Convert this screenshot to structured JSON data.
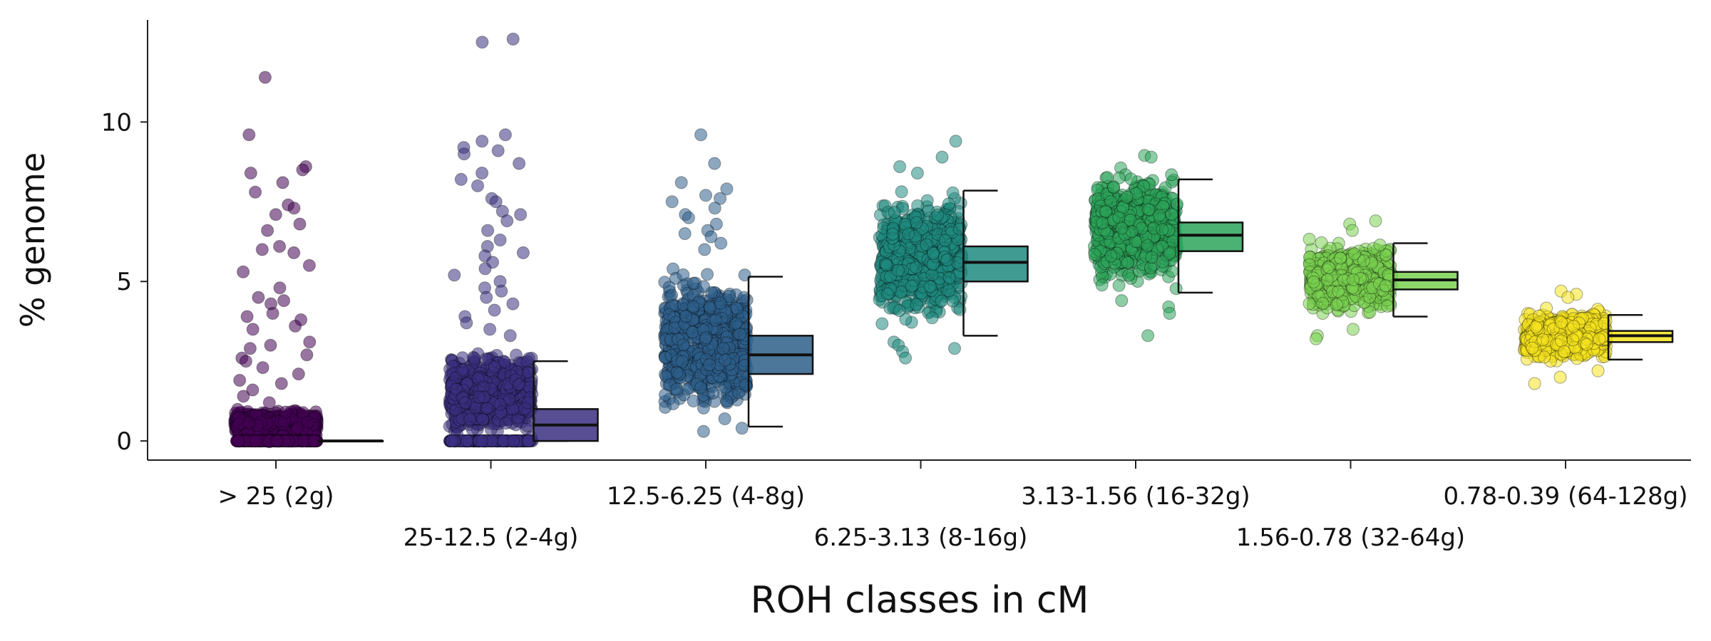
{
  "chart_data": {
    "type": "scatter",
    "title": "",
    "xlabel": "ROH classes in cM",
    "ylabel": "% genome",
    "ylim": [
      -0.6,
      13.2
    ],
    "yticks": [
      0,
      5,
      10
    ],
    "grid": false,
    "legend": "none",
    "categories": [
      {
        "label": "> 25 (2g)",
        "color": "#440154",
        "whisker_low": 0,
        "q1": 0,
        "median": 0,
        "q3": 0,
        "whisker_high": 0,
        "bulk_low": 0,
        "bulk_high": 1.0,
        "zero_cluster": true,
        "outliers": [
          11.4,
          9.6,
          8.6,
          8.5,
          8.4,
          8.1,
          7.8,
          7.4,
          7.3,
          7.1,
          6.8,
          6.6,
          6.1,
          6.0,
          5.9,
          5.5,
          5.3,
          4.8,
          4.5,
          4.4,
          4.3,
          4.0,
          3.9,
          3.8,
          3.6,
          3.5,
          3.1,
          3.0,
          2.9,
          2.7,
          2.6,
          2.5,
          2.3,
          2.1,
          1.9,
          1.8,
          1.6,
          1.4,
          1.2
        ]
      },
      {
        "label": "25-12.5 (2-4g)",
        "color": "#3b2f80",
        "whisker_low": 0,
        "q1": 0,
        "median": 0.5,
        "q3": 1.0,
        "whisker_high": 2.5,
        "bulk_low": 0,
        "bulk_high": 3.0,
        "zero_cluster": true,
        "outliers": [
          12.6,
          12.5,
          9.6,
          9.4,
          9.2,
          9.1,
          9.0,
          8.7,
          8.4,
          8.2,
          8.0,
          7.6,
          7.5,
          7.2,
          7.1,
          6.9,
          6.6,
          6.3,
          6.1,
          5.9,
          5.8,
          5.6,
          5.4,
          5.2,
          5.0,
          4.8,
          4.7,
          4.5,
          4.3,
          4.1,
          3.9,
          3.7,
          3.5,
          3.3
        ]
      },
      {
        "label": "12.5-6.25 (4-8g)",
        "color": "#2d5f8a",
        "whisker_low": 0.45,
        "q1": 2.1,
        "median": 2.7,
        "q3": 3.3,
        "whisker_high": 5.15,
        "bulk_low": 0.5,
        "bulk_high": 5.6,
        "zero_cluster": false,
        "outliers": [
          9.6,
          8.7,
          8.1,
          7.9,
          7.7,
          7.6,
          7.5,
          7.3,
          7.1,
          7.0,
          6.8,
          6.6,
          6.5,
          6.4,
          6.2,
          6.0,
          0.3,
          0.4
        ]
      },
      {
        "label": "6.25-3.13 (8-16g)",
        "color": "#1f8a80",
        "whisker_low": 3.3,
        "q1": 5.0,
        "median": 5.6,
        "q3": 6.1,
        "whisker_high": 7.85,
        "bulk_low": 3.4,
        "bulk_high": 8.1,
        "zero_cluster": false,
        "outliers": [
          9.4,
          8.9,
          8.6,
          8.4,
          3.1,
          3.0,
          2.9,
          2.8,
          2.6
        ]
      },
      {
        "label": "3.13-1.56 (16-32g)",
        "color": "#2ba45a",
        "whisker_low": 4.65,
        "q1": 5.95,
        "median": 6.45,
        "q3": 6.85,
        "whisker_high": 8.2,
        "bulk_low": 4.6,
        "bulk_high": 8.8,
        "zero_cluster": false,
        "outliers": [
          8.95,
          8.9,
          4.4,
          4.2,
          4.0,
          3.3
        ]
      },
      {
        "label": "1.56-0.78 (32-64g)",
        "color": "#7ad151",
        "whisker_low": 3.9,
        "q1": 4.75,
        "median": 5.05,
        "q3": 5.3,
        "whisker_high": 6.2,
        "bulk_low": 3.8,
        "bulk_high": 6.4,
        "zero_cluster": false,
        "outliers": [
          6.9,
          6.8,
          6.6,
          3.5,
          3.3,
          3.2
        ]
      },
      {
        "label": "0.78-0.39 (64-128g)",
        "color": "#f5e31f",
        "whisker_low": 2.55,
        "q1": 3.1,
        "median": 3.3,
        "q3": 3.45,
        "whisker_high": 3.95,
        "bulk_low": 2.4,
        "bulk_high": 4.2,
        "zero_cluster": false,
        "outliers": [
          4.7,
          4.6,
          4.5,
          2.2,
          2.0,
          1.8
        ]
      }
    ]
  }
}
